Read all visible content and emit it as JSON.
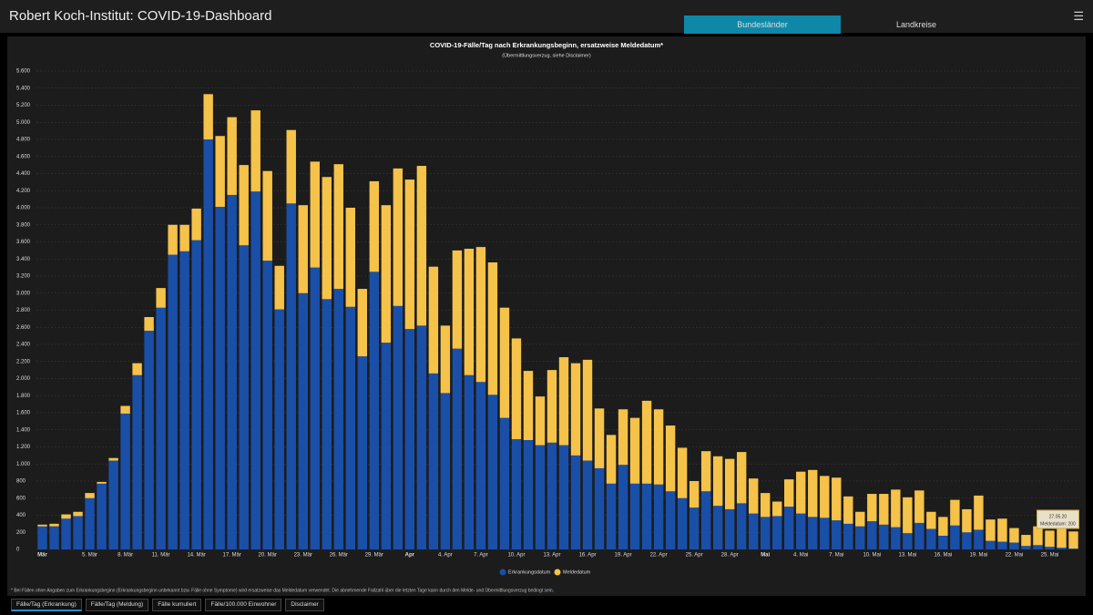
{
  "header": {
    "title": "Robert Koch-Institut: COVID-19-Dashboard",
    "tabs": [
      "Bundesländer",
      "Landkreise"
    ]
  },
  "chart_data": {
    "type": "stacked-bar",
    "title": "COVID-19-Fälle/Tag nach Erkrankungsbeginn, ersatzweise Meldedatum*",
    "subtitle": "(Übermittlungsverzug, siehe Disclaimer)",
    "categories": [
      "Mär",
      null,
      null,
      null,
      "5. Mär",
      null,
      null,
      "8. Mär",
      null,
      null,
      "11. Mär",
      null,
      null,
      "14. Mär",
      null,
      null,
      "17. Mär",
      null,
      null,
      "20. Mär",
      null,
      null,
      "23. Mär",
      null,
      null,
      "26. Mär",
      null,
      null,
      "29. Mär",
      null,
      null,
      "Apr",
      null,
      null,
      "4. Apr",
      null,
      null,
      "7. Apr",
      null,
      null,
      "10. Apr",
      null,
      null,
      "13. Apr",
      null,
      null,
      "16. Apr",
      null,
      null,
      "19. Apr",
      null,
      null,
      "22. Apr",
      null,
      null,
      "25. Apr",
      null,
      null,
      "28. Apr",
      null,
      null,
      "Mai",
      null,
      null,
      "4. Mai",
      null,
      null,
      "7. Mai",
      null,
      null,
      "10. Mai",
      null,
      null,
      "13. Mai",
      null,
      null,
      "16. Mai",
      null,
      null,
      "19. Mai",
      null,
      null,
      "22. Mai",
      null,
      null,
      "25. Mai",
      null,
      null
    ],
    "series": [
      {
        "name": "Erkrankungsdatum",
        "color": "#1a4fa8",
        "values": [
          270,
          270,
          360,
          390,
          600,
          770,
          1040,
          1590,
          2040,
          2560,
          2830,
          3450,
          3490,
          3620,
          4800,
          4010,
          4150,
          3560,
          4190,
          3380,
          2810,
          4050,
          3000,
          3300,
          2930,
          3050,
          2840,
          2260,
          3250,
          2420,
          2850,
          2580,
          2620,
          2060,
          1830,
          2350,
          2040,
          1960,
          1810,
          1540,
          1290,
          1280,
          1220,
          1250,
          1220,
          1100,
          1040,
          950,
          770,
          990,
          770,
          770,
          760,
          680,
          600,
          490,
          680,
          510,
          470,
          540,
          420,
          380,
          390,
          500,
          420,
          380,
          370,
          340,
          300,
          270,
          330,
          290,
          260,
          190,
          310,
          240,
          160,
          280,
          200,
          230,
          100,
          90,
          80,
          40,
          50,
          30,
          20,
          10
        ]
      },
      {
        "name": "Meldedatum",
        "color": "#f5c24a",
        "values": [
          20,
          30,
          50,
          50,
          60,
          20,
          30,
          90,
          140,
          160,
          230,
          350,
          310,
          370,
          530,
          830,
          910,
          940,
          950,
          1050,
          510,
          860,
          1030,
          1240,
          1430,
          1460,
          1160,
          790,
          1060,
          1610,
          1610,
          1750,
          1870,
          1250,
          790,
          1150,
          1480,
          1580,
          1550,
          1290,
          1180,
          810,
          570,
          850,
          1030,
          1080,
          1180,
          700,
          570,
          650,
          770,
          970,
          880,
          770,
          590,
          310,
          470,
          580,
          590,
          600,
          410,
          280,
          170,
          320,
          490,
          550,
          490,
          500,
          320,
          170,
          320,
          360,
          440,
          420,
          380,
          200,
          220,
          300,
          270,
          400,
          250,
          270,
          170,
          130,
          220,
          190,
          230,
          200
        ]
      }
    ],
    "ylim": [
      0,
      5600
    ],
    "yticks": [
      0,
      200,
      400,
      600,
      800,
      {
        "value": 1000,
        "label": "1.000"
      },
      {
        "value": 1200,
        "label": "1.200"
      },
      {
        "value": 1400,
        "label": "1.400"
      },
      {
        "value": 1600,
        "label": "1.600"
      },
      {
        "value": 1800,
        "label": "1.800"
      },
      {
        "value": 2000,
        "label": "2.000"
      },
      {
        "value": 2200,
        "label": "2.200"
      },
      {
        "value": 2400,
        "label": "2.400"
      },
      {
        "value": 2600,
        "label": "2.600"
      },
      {
        "value": 2800,
        "label": "2.800"
      },
      {
        "value": 3000,
        "label": "3.000"
      },
      {
        "value": 3200,
        "label": "3.200"
      },
      {
        "value": 3400,
        "label": "3.400"
      },
      {
        "value": 3600,
        "label": "3.600"
      },
      {
        "value": 3800,
        "label": "3.800"
      },
      {
        "value": 4000,
        "label": "4.000"
      },
      {
        "value": 4200,
        "label": "4.200"
      },
      {
        "value": 4400,
        "label": "4.400"
      },
      {
        "value": 4600,
        "label": "4.600"
      },
      {
        "value": 4800,
        "label": "4.800"
      },
      {
        "value": 5000,
        "label": "5.000"
      },
      {
        "value": 5200,
        "label": "5.200"
      },
      {
        "value": 5400,
        "label": "5.400"
      },
      {
        "value": 5600,
        "label": "5.600"
      }
    ],
    "grid": true,
    "tooltip": {
      "date": "27.05.20",
      "text": "Meldedatum: 200"
    },
    "footnote": "* Bei Fällen ohne Angaben zum Erkrankungsbeginn (Erkrankungsbeginn unbekannt bzw. Fälle ohne Symptome) wird ersatzweise das Meldedatum verwendet. Die abnehmende Fallzahl über die letzten Tage kann durch den Melde- und Übermittlungsverzug bedingt sein."
  },
  "bottom_tabs": [
    "Fälle/Tag (Erkrankung)",
    "Fälle/Tag (Meldung)",
    "Fälle kumuliert",
    "Fälle/100.000 Einwohner",
    "Disclaimer"
  ]
}
